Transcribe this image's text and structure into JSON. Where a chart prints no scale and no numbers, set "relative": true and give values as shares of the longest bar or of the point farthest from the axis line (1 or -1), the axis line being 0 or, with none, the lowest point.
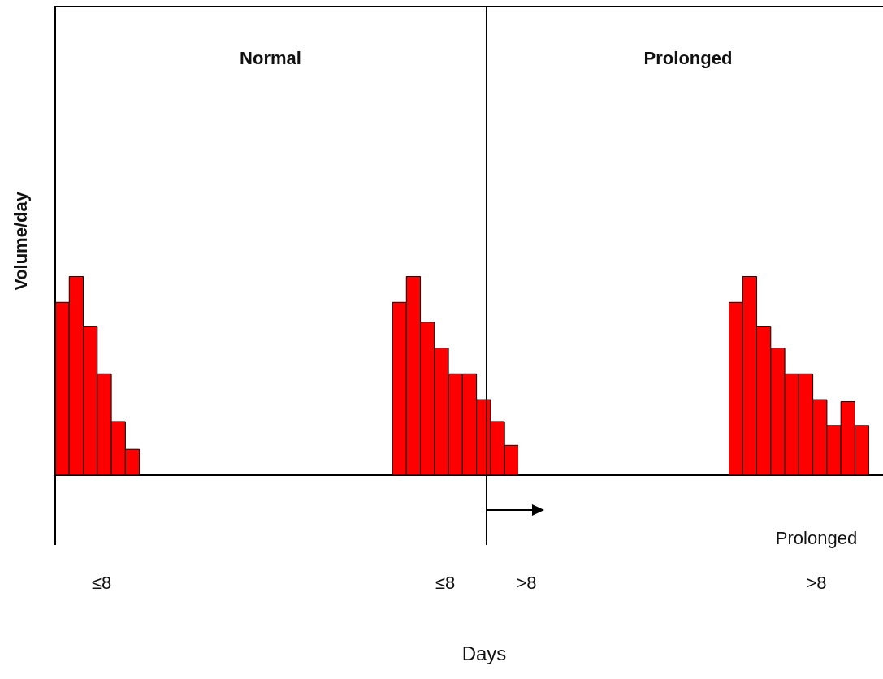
{
  "chart_data": [
    {
      "type": "bar",
      "relative": true,
      "ylabel": "Volume/day",
      "color": "#ff0000",
      "categories": [
        null,
        null,
        null,
        null,
        null,
        null
      ],
      "values": [
        0.87,
        1,
        0.75,
        0.51,
        0.27,
        0.13
      ],
      "annotations": [
        "Normal",
        "≤8"
      ]
    },
    {
      "type": "bar",
      "relative": true,
      "xlabel": "Days",
      "color": "#ff0000",
      "categories": [
        null,
        null,
        null,
        null,
        null,
        null,
        null,
        null,
        null
      ],
      "values": [
        0.87,
        1,
        0.77,
        0.64,
        0.51,
        0.51,
        0.38,
        0.27,
        0.15
      ],
      "annotations": [
        "Prolonged",
        "≤8",
        ">8"
      ]
    },
    {
      "type": "bar",
      "relative": true,
      "color": "#ff0000",
      "categories": [
        null,
        null,
        null,
        null,
        null,
        null,
        null,
        null,
        null,
        null
      ],
      "values": [
        0.87,
        1,
        0.75,
        0.64,
        0.51,
        0.51,
        0.38,
        0.25,
        0.37,
        0.25
      ],
      "annotations": [
        "Prolonged",
        ">8"
      ]
    }
  ]
}
